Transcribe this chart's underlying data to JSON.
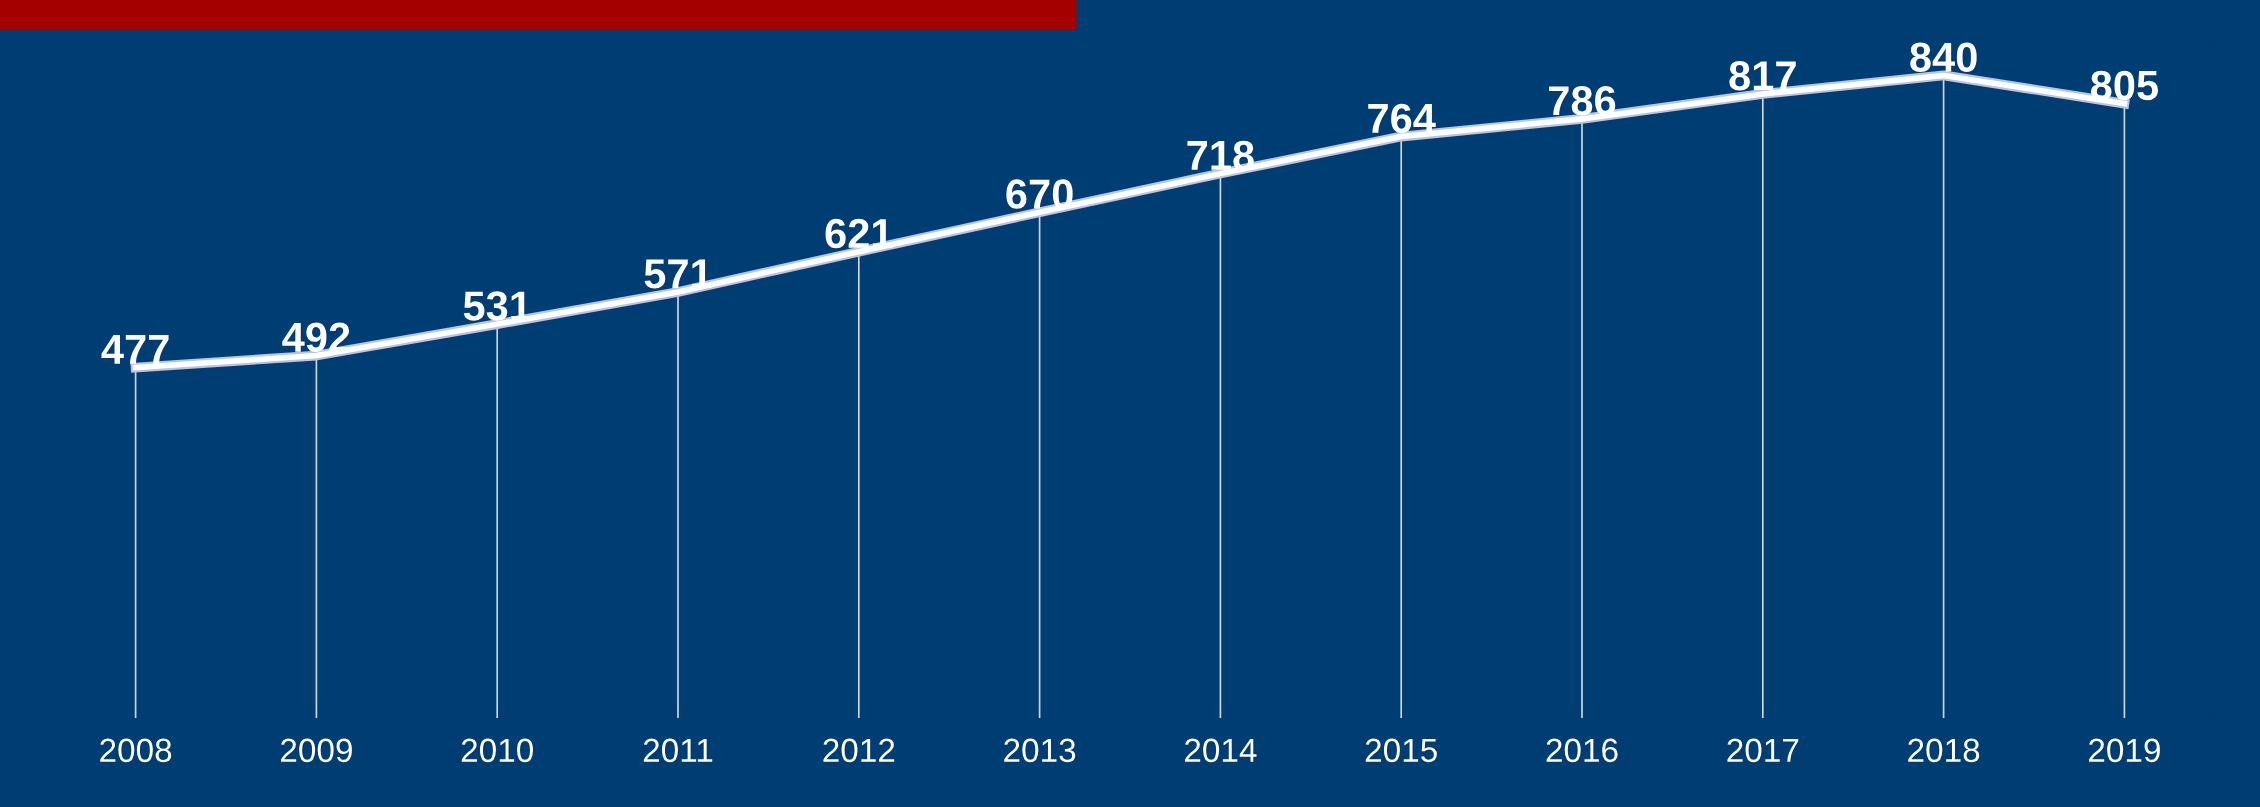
{
  "chart_data": {
    "type": "line",
    "categories": [
      "2008",
      "2009",
      "2010",
      "2011",
      "2012",
      "2013",
      "2014",
      "2015",
      "2016",
      "2017",
      "2018",
      "2019"
    ],
    "series": [
      {
        "color": "#ffffff",
        "values": [
          477,
          492,
          531,
          571,
          621,
          670,
          718,
          764,
          786,
          817,
          840,
          805
        ]
      }
    ],
    "data_labels": true,
    "line_style": "solid",
    "grid": "x",
    "tick_labels": "x"
  }
}
